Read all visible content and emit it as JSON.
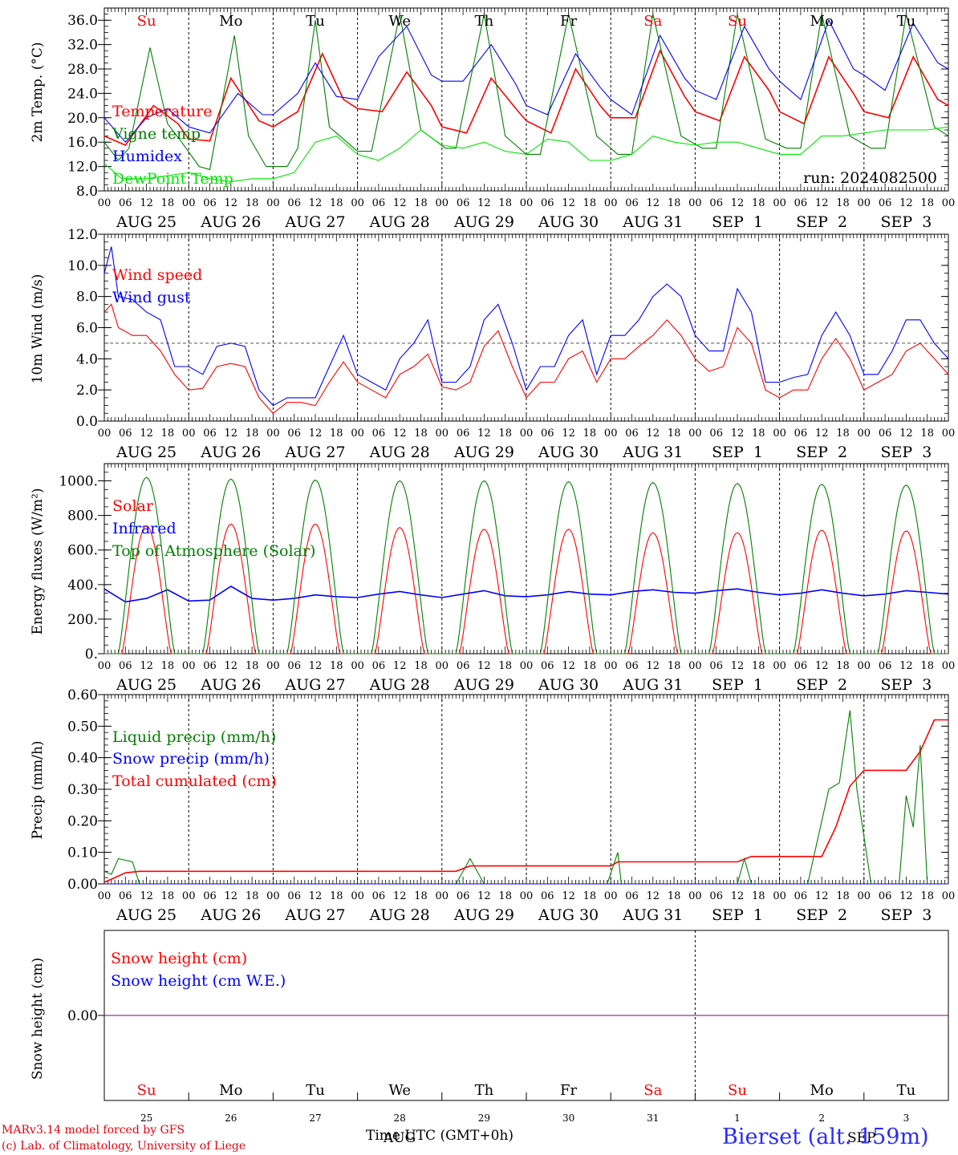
{
  "run_label": "run: 2024082500",
  "footer": {
    "model": "MARv3.14 model forced by GFS",
    "lab": "(c) Lab. of Climatology, University of Liege",
    "xlabel": "Time UTC (GMT+0h)",
    "xlabel_overlap": "AUG",
    "month2": "SEP",
    "station": "Bierset (alt. 159m)"
  },
  "days": {
    "weekday": [
      "Su",
      "Mo",
      "Tu",
      "We",
      "Th",
      "Fr",
      "Sa",
      "Su",
      "Mo",
      "Tu"
    ],
    "weekday_color": [
      "red",
      "black",
      "black",
      "black",
      "black",
      "black",
      "red",
      "red",
      "black",
      "black"
    ],
    "date_label": [
      "AUG 25",
      "AUG 26",
      "AUG 27",
      "AUG 28",
      "AUG 29",
      "AUG 30",
      "AUG 31",
      "SEP  1",
      "SEP  2",
      "SEP  3"
    ],
    "day_num": [
      "25",
      "26",
      "27",
      "28",
      "29",
      "30",
      "31",
      "1",
      "2",
      "3"
    ],
    "hours": [
      "00",
      "06",
      "12",
      "18"
    ],
    "end_hour": "00"
  },
  "colors": {
    "red": "#ff0000",
    "green": "#008000",
    "blue": "#0000ff",
    "lightgreen": "#00e600",
    "purple": "#800080"
  },
  "chart_data": [
    {
      "type": "line",
      "ylabel": "2m Temp. (°C)",
      "ylim": [
        8,
        38
      ],
      "yticks": [
        "8.0",
        "12.0",
        "16.0",
        "20.0",
        "24.0",
        "28.0",
        "32.0",
        "36.0"
      ],
      "x_unit": "hours since 2024-08-25 00 UTC",
      "legend": [
        "Temperature",
        "Vigne temp",
        "Humidex",
        "DewPoint Temp"
      ],
      "series": [
        {
          "name": "Temperature",
          "color": "red",
          "x": [
            0,
            6,
            14,
            21,
            24,
            30,
            36,
            44,
            48,
            55,
            62,
            68,
            72,
            79,
            86,
            93,
            96,
            103,
            110,
            117,
            120,
            127,
            134,
            141,
            144,
            151,
            158,
            165,
            168,
            175,
            182,
            189,
            192,
            199,
            206,
            213,
            216,
            223,
            230,
            237,
            240
          ],
          "values": [
            17,
            15.5,
            22,
            19,
            16.5,
            16.2,
            26.5,
            19.5,
            18.5,
            21,
            30.5,
            23,
            21.5,
            21,
            27.5,
            22,
            18.5,
            17.5,
            26.5,
            21.5,
            19.5,
            17.5,
            28,
            22,
            20,
            20,
            31,
            23.5,
            21,
            19.5,
            30,
            24.5,
            21,
            19,
            30,
            24,
            21,
            20,
            30,
            23,
            22
          ]
        },
        {
          "name": "Vigne temp",
          "color": "green",
          "x": [
            0,
            4,
            7,
            13,
            18,
            22,
            27,
            30,
            37,
            41,
            46,
            52,
            55,
            60,
            64,
            72,
            76,
            84,
            90,
            97,
            100,
            108,
            114,
            120,
            124,
            132,
            140,
            146,
            150,
            156,
            164,
            170,
            174,
            180,
            188,
            194,
            198,
            204,
            212,
            218,
            222,
            228,
            236,
            240
          ],
          "values": [
            16,
            13,
            15,
            31.5,
            19,
            16,
            12,
            11.5,
            33.5,
            17,
            12,
            12,
            15,
            36,
            18.5,
            14.5,
            14.5,
            37,
            18,
            15,
            15,
            37,
            17,
            14,
            14,
            37,
            17,
            14,
            14,
            37,
            17,
            15,
            15,
            37,
            16.5,
            15,
            15,
            37,
            17,
            15,
            15,
            37,
            18.5,
            17
          ]
        },
        {
          "name": "Humidex",
          "color": "blue",
          "x": [
            0,
            6,
            12,
            18,
            24,
            30,
            38,
            45,
            48,
            55,
            60,
            66,
            72,
            78,
            86,
            93,
            96,
            102,
            110,
            117,
            120,
            126,
            134,
            141,
            144,
            150,
            158,
            165,
            168,
            174,
            182,
            189,
            192,
            198,
            206,
            213,
            216,
            222,
            230,
            237,
            240
          ],
          "values": [
            20,
            16,
            20,
            21.5,
            18.5,
            17.5,
            24,
            20.5,
            20.5,
            24,
            29,
            23.5,
            23,
            30,
            35,
            27,
            26,
            26,
            32,
            25.5,
            22,
            20.5,
            30.5,
            25,
            23,
            20.5,
            33.5,
            26.5,
            24.5,
            23,
            35,
            28,
            26,
            23,
            36,
            28,
            27,
            24.5,
            35.5,
            29,
            28
          ]
        },
        {
          "name": "DewPoint Temp",
          "color": "lightgreen",
          "x": [
            0,
            5,
            12,
            18,
            24,
            30,
            36,
            42,
            48,
            54,
            60,
            66,
            72,
            78,
            84,
            90,
            96,
            102,
            108,
            114,
            120,
            126,
            132,
            138,
            144,
            150,
            156,
            162,
            168,
            174,
            180,
            186,
            192,
            198,
            204,
            210,
            216,
            222,
            228,
            234,
            240
          ],
          "values": [
            12.5,
            10,
            10,
            10.5,
            11,
            10,
            9.5,
            10,
            10,
            11,
            16,
            17,
            14,
            13,
            15,
            18,
            15.5,
            15,
            16,
            14.5,
            14,
            16.5,
            16,
            13,
            13,
            14,
            17,
            16,
            15.5,
            16,
            16,
            15,
            14,
            14,
            17,
            17,
            17.5,
            18,
            18,
            18,
            18.5
          ]
        }
      ]
    },
    {
      "type": "line",
      "ylabel": "10m Wind (m/s)",
      "ylim": [
        0,
        12
      ],
      "yticks": [
        "0.0",
        "2.0",
        "4.0",
        "6.0",
        "8.0",
        "10.0",
        "12.0"
      ],
      "reference_line": 5,
      "legend": [
        "Wind speed",
        "Wind gust"
      ],
      "series": [
        {
          "name": "Wind speed",
          "color": "red",
          "x": [
            0,
            2,
            4,
            8,
            12,
            16,
            20,
            24,
            28,
            32,
            36,
            40,
            44,
            48,
            52,
            56,
            60,
            64,
            68,
            72,
            76,
            80,
            84,
            88,
            92,
            96,
            100,
            104,
            108,
            112,
            116,
            120,
            124,
            128,
            132,
            136,
            140,
            144,
            148,
            152,
            156,
            160,
            164,
            168,
            172,
            176,
            180,
            184,
            188,
            192,
            196,
            200,
            204,
            208,
            212,
            216,
            220,
            224,
            228,
            232,
            236,
            240
          ],
          "values": [
            7,
            7.5,
            6,
            5.5,
            5.5,
            4.5,
            3,
            2,
            2.1,
            3.5,
            3.7,
            3.5,
            1.5,
            0.5,
            1.2,
            1.2,
            1.0,
            2.5,
            3.8,
            2.5,
            2.0,
            1.5,
            3.0,
            3.5,
            4.3,
            2.2,
            2.0,
            2.5,
            4.8,
            5.8,
            3.5,
            1.5,
            2.5,
            2.5,
            4.0,
            4.5,
            2.5,
            4.0,
            4.0,
            4.8,
            5.5,
            6.5,
            5.5,
            4.0,
            3.2,
            3.5,
            6.0,
            5.0,
            2.0,
            1.5,
            2.0,
            2.0,
            4.0,
            5.3,
            4.0,
            2.0,
            2.5,
            3.0,
            4.5,
            5.0,
            4.0,
            3.0
          ]
        },
        {
          "name": "Wind gust",
          "color": "blue",
          "x": [
            0,
            2,
            4,
            8,
            12,
            16,
            20,
            24,
            28,
            32,
            36,
            40,
            44,
            48,
            52,
            56,
            60,
            64,
            68,
            72,
            76,
            80,
            84,
            88,
            92,
            96,
            100,
            104,
            108,
            112,
            116,
            120,
            124,
            128,
            132,
            136,
            140,
            144,
            148,
            152,
            156,
            160,
            164,
            168,
            172,
            176,
            180,
            184,
            188,
            192,
            196,
            200,
            204,
            208,
            212,
            216,
            220,
            224,
            228,
            232,
            236,
            240
          ],
          "values": [
            9.5,
            11.2,
            8,
            7.8,
            7.0,
            6.5,
            3.5,
            3.5,
            3.0,
            4.8,
            5.0,
            4.8,
            2.0,
            1.0,
            1.5,
            1.5,
            1.5,
            3.5,
            5.5,
            3.0,
            2.5,
            2.0,
            4.0,
            5.0,
            6.5,
            2.5,
            2.5,
            3.5,
            6.5,
            7.5,
            5.0,
            2.0,
            3.5,
            3.5,
            5.5,
            6.5,
            3.0,
            5.5,
            5.5,
            6.5,
            8.0,
            8.8,
            8.0,
            5.5,
            4.5,
            4.5,
            8.5,
            7.0,
            2.5,
            2.5,
            2.8,
            3.0,
            5.5,
            7.0,
            5.5,
            3.0,
            3.0,
            4.5,
            6.5,
            6.5,
            5.0,
            4.0
          ]
        }
      ]
    },
    {
      "type": "line",
      "ylabel": "Energy fluxes (W/m²)",
      "ylim": [
        0,
        1100
      ],
      "yticks": [
        "0.",
        "200.",
        "400.",
        "600.",
        "800.",
        "1000."
      ],
      "legend": [
        "Solar",
        "Infrared",
        "Top of Atmosphere (Solar)"
      ],
      "series": [
        {
          "name": "Solar",
          "color": "red",
          "peak_hour_utc": 12,
          "daily_peak": [
            740,
            750,
            750,
            730,
            720,
            720,
            700,
            700,
            715,
            710
          ],
          "daylight_hours": [
            5,
            19
          ]
        },
        {
          "name": "Infrared",
          "color": "blue",
          "x": [
            0,
            6,
            12,
            18,
            24,
            30,
            36,
            42,
            48,
            54,
            60,
            66,
            72,
            78,
            84,
            90,
            96,
            102,
            108,
            114,
            120,
            126,
            132,
            138,
            144,
            150,
            156,
            162,
            168,
            174,
            180,
            186,
            192,
            198,
            204,
            210,
            216,
            222,
            228,
            234,
            240
          ],
          "values": [
            375,
            300,
            320,
            370,
            305,
            310,
            390,
            320,
            310,
            320,
            340,
            330,
            325,
            345,
            360,
            340,
            325,
            345,
            365,
            335,
            330,
            340,
            360,
            345,
            340,
            360,
            370,
            355,
            350,
            365,
            375,
            355,
            340,
            350,
            370,
            350,
            335,
            345,
            365,
            355,
            345
          ]
        },
        {
          "name": "Top of Atmosphere (Solar)",
          "color": "green",
          "peak_hour_utc": 12,
          "daily_peak": [
            1020,
            1010,
            1005,
            1000,
            1000,
            995,
            990,
            985,
            980,
            975
          ],
          "daylight_hours": [
            4,
            20
          ]
        }
      ]
    },
    {
      "type": "line",
      "ylabel": "Precip (mm/h)",
      "ylim": [
        0,
        0.6
      ],
      "yticks": [
        "0.00",
        "0.10",
        "0.20",
        "0.30",
        "0.40",
        "0.50",
        "0.60"
      ],
      "legend": [
        "Liquid precip (mm/h)",
        "Snow precip (mm/h)",
        "Total cumulated (cm)"
      ],
      "series": [
        {
          "name": "Liquid precip (mm/h)",
          "color": "green",
          "x": [
            0,
            2,
            4,
            8,
            10,
            12,
            24,
            100,
            104,
            108,
            143,
            146,
            147,
            150,
            180,
            182,
            184,
            186,
            200,
            206,
            209,
            212,
            214,
            218,
            220,
            226,
            228,
            230,
            232,
            234,
            236,
            240
          ],
          "values": [
            0.04,
            0.03,
            0.08,
            0.07,
            0,
            0,
            0,
            0,
            0.08,
            0,
            0,
            0.1,
            0,
            0,
            0,
            0.08,
            0,
            0,
            0,
            0.3,
            0.32,
            0.55,
            0.3,
            0,
            0,
            0,
            0.28,
            0.18,
            0.44,
            0,
            0,
            0
          ]
        },
        {
          "name": "Snow precip (mm/h)",
          "color": "blue",
          "x": [
            0,
            240
          ],
          "values": [
            0,
            0
          ]
        },
        {
          "name": "Total cumulated (cm)",
          "color": "red",
          "x": [
            0,
            3,
            6,
            10,
            24,
            100,
            104,
            144,
            146,
            180,
            184,
            204,
            208,
            212,
            216,
            220,
            228,
            232,
            236,
            240
          ],
          "values": [
            0.005,
            0.02,
            0.035,
            0.04,
            0.04,
            0.04,
            0.057,
            0.057,
            0.07,
            0.07,
            0.087,
            0.087,
            0.18,
            0.31,
            0.36,
            0.36,
            0.36,
            0.42,
            0.52,
            0.52
          ]
        }
      ]
    },
    {
      "type": "line",
      "ylabel": "Snow height (cm)",
      "yticks": [
        "0.00"
      ],
      "legend": [
        "Snow height (cm)",
        "Snow height (cm W.E.)"
      ],
      "series": [
        {
          "name": "Snow height (cm)",
          "color": "red",
          "x": [
            0,
            240
          ],
          "values": [
            0,
            0
          ]
        },
        {
          "name": "Snow height (cm W.E.)",
          "color": "blue",
          "x": [
            0,
            240
          ],
          "values": [
            0,
            0
          ]
        }
      ]
    }
  ]
}
